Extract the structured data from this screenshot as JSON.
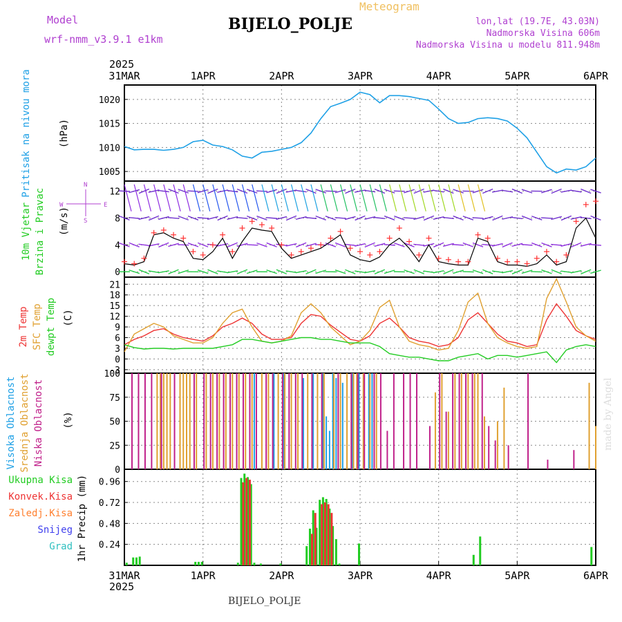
{
  "header": {
    "title": "BIJELO_POLJE",
    "subtitle": "Meteogram",
    "model_label": "Model",
    "model_name": "wrf-nmm_v3.9.1 e1km",
    "location_line1": "lon,lat (19.7E, 43.03N)",
    "location_line2": "Nadmorska Visina 606m",
    "location_line3": "Nadmorska Visina u modelu 811.948m"
  },
  "footer": {
    "caption": "BIJELO_POLJE",
    "credit": "made by Angel"
  },
  "time_axis": {
    "year": "2025",
    "labels": [
      "31MAR",
      "1APR",
      "2APR",
      "3APR",
      "4APR",
      "5APR",
      "6APR"
    ]
  },
  "colors": {
    "pressure": "#1ea0e6",
    "wind_speed": "#000000",
    "gust": "#ff3030",
    "temp2m": "#ee3333",
    "sfc_temp": "#e0a030",
    "dewpt": "#22cc22",
    "cloud_high": "#1ea0e6",
    "cloud_mid": "#e0a030",
    "cloud_low": "#c0208a",
    "precip_total": "#22cc22",
    "precip_conv": "#ee3333",
    "precip_frozen": "#ff8030",
    "snow": "#4040ee",
    "graupel": "#30c0c0"
  },
  "chart_data": [
    {
      "type": "line",
      "name": "pressure",
      "ylabel": "(hPa)",
      "side_label": "Pritisak na nivou mora",
      "ylim": [
        1003,
        1023
      ],
      "yticks": [
        1005,
        1010,
        1015,
        1020
      ],
      "x": [
        0,
        3,
        6,
        9,
        12,
        15,
        18,
        21,
        24,
        27,
        30,
        33,
        36,
        39,
        42,
        45,
        48,
        51,
        54,
        57,
        60,
        63,
        66,
        69,
        72,
        75,
        78,
        81,
        84,
        87,
        90,
        93,
        96,
        99,
        102,
        105,
        108,
        111,
        114,
        117,
        120,
        123,
        126,
        129,
        132,
        135,
        138,
        141,
        144
      ],
      "values": [
        1010.2,
        1009.5,
        1009.6,
        1009.6,
        1009.4,
        1009.6,
        1010,
        1011.2,
        1011.5,
        1010.5,
        1010.2,
        1009.5,
        1008.2,
        1007.8,
        1009,
        1009.2,
        1009.6,
        1010,
        1011,
        1013,
        1016,
        1018.5,
        1019.2,
        1020,
        1021.5,
        1021,
        1019.3,
        1020.8,
        1020.8,
        1020.6,
        1020.2,
        1019.8,
        1018,
        1016,
        1015,
        1015.2,
        1016,
        1016.2,
        1016,
        1015.5,
        1014,
        1012,
        1009,
        1006,
        1004.7,
        1005.5,
        1005.3,
        1006,
        1007.8
      ]
    },
    {
      "type": "line",
      "name": "wind",
      "ylabel": "(m/s)",
      "side_label": [
        "10m Vjetar",
        "Brzina i Pravac"
      ],
      "direction_legend": [
        "W",
        "S",
        "N",
        "E"
      ],
      "ylim": [
        -0.8,
        13.5
      ],
      "yticks": [
        0,
        4,
        8,
        12
      ],
      "x": [
        0,
        3,
        6,
        9,
        12,
        15,
        18,
        21,
        24,
        27,
        30,
        33,
        36,
        39,
        42,
        45,
        48,
        51,
        54,
        57,
        60,
        63,
        66,
        69,
        72,
        75,
        78,
        81,
        84,
        87,
        90,
        93,
        96,
        99,
        102,
        105,
        108,
        111,
        114,
        117,
        120,
        123,
        126,
        129,
        132,
        135,
        138,
        141,
        144
      ],
      "speed": [
        1.2,
        1.0,
        1.5,
        5.5,
        5.8,
        5.0,
        4.5,
        2.0,
        1.8,
        3.0,
        5.0,
        2.0,
        4.5,
        6.5,
        6.2,
        6.0,
        3.5,
        2.0,
        2.5,
        3.0,
        3.5,
        4.5,
        5.5,
        2.5,
        1.8,
        1.5,
        2.2,
        4.0,
        5.0,
        3.5,
        1.5,
        4.0,
        1.5,
        1.2,
        1.0,
        1.0,
        5.0,
        4.5,
        1.5,
        1.0,
        1.0,
        0.8,
        1.2,
        2.5,
        1.0,
        1.5,
        6.5,
        8.0,
        5.0
      ],
      "gust": [
        1.5,
        1.2,
        2.0,
        5.8,
        6.2,
        5.5,
        5.0,
        3.0,
        2.5,
        4.0,
        5.5,
        3.0,
        6.5,
        7.5,
        7.0,
        6.5,
        4.0,
        2.5,
        3.0,
        3.5,
        4.0,
        5.0,
        6.0,
        3.5,
        3.0,
        2.5,
        3.0,
        5.0,
        6.5,
        4.5,
        2.5,
        5.0,
        2.0,
        1.8,
        1.5,
        1.5,
        5.5,
        5.0,
        2.0,
        1.5,
        1.5,
        1.2,
        2.0,
        3.0,
        1.5,
        2.5,
        7.5,
        10.0,
        10.5
      ]
    },
    {
      "type": "line",
      "name": "temperature",
      "ylabel": "(C)",
      "side_label": [
        "2m Temp",
        "SFC Temp",
        "dewpt Temp"
      ],
      "ylim": [
        -4,
        23
      ],
      "yticks": [
        -3,
        0,
        3,
        6,
        9,
        12,
        15,
        18,
        21
      ],
      "x": [
        0,
        3,
        6,
        9,
        12,
        15,
        18,
        21,
        24,
        27,
        30,
        33,
        36,
        39,
        42,
        45,
        48,
        51,
        54,
        57,
        60,
        63,
        66,
        69,
        72,
        75,
        78,
        81,
        84,
        87,
        90,
        93,
        96,
        99,
        102,
        105,
        108,
        111,
        114,
        117,
        120,
        123,
        126,
        129,
        132,
        135,
        138,
        141,
        144
      ],
      "series": [
        {
          "name": "2m Temp",
          "values": [
            4,
            5.5,
            6.5,
            8,
            8.5,
            7,
            6,
            5.5,
            5,
            6.5,
            9,
            10,
            11.5,
            10,
            7,
            5.5,
            5.5,
            6,
            10,
            12.5,
            12,
            9.5,
            7.5,
            5.5,
            5,
            6.5,
            10,
            11.5,
            9,
            6,
            5,
            4.5,
            3.5,
            4,
            6,
            11,
            13,
            10,
            7,
            5,
            4.5,
            3.5,
            4,
            11,
            15.5,
            12,
            8,
            6.5,
            5.5
          ]
        },
        {
          "name": "SFC Temp",
          "values": [
            2,
            7,
            8.5,
            10,
            9,
            6.5,
            5.5,
            4.5,
            4.5,
            6,
            10,
            13,
            14,
            9,
            5,
            4.5,
            5,
            6.5,
            13,
            15.5,
            13,
            9,
            6.5,
            4,
            5,
            8,
            14.5,
            16.5,
            9,
            5,
            4,
            3.5,
            2.5,
            3,
            8,
            16,
            18.5,
            10,
            6,
            4.5,
            3.5,
            3,
            3.5,
            17,
            22.5,
            16,
            9,
            6.5,
            5
          ]
        },
        {
          "name": "dewpt Temp",
          "values": [
            4,
            3.2,
            2.8,
            3,
            3,
            2.8,
            3,
            3,
            3,
            3,
            3.5,
            4,
            5.5,
            5.5,
            5,
            4.5,
            5,
            5.5,
            6,
            6,
            5.5,
            5.5,
            5,
            4.5,
            4.5,
            4.5,
            3.5,
            1.5,
            1,
            0.5,
            0.5,
            0,
            -0.5,
            -0.5,
            0.5,
            1,
            1.5,
            0,
            1,
            1,
            0.5,
            1,
            1.5,
            2,
            -1,
            2.5,
            3.5,
            4,
            3.5
          ]
        }
      ]
    },
    {
      "type": "bar",
      "name": "clouds",
      "ylabel": "(%)",
      "side_label": [
        "Visoka Oblacnost",
        "Srednja Oblacnost",
        "Niska Oblacnost"
      ],
      "ylim": [
        0,
        100
      ],
      "yticks": [
        0,
        25,
        50,
        75,
        100
      ],
      "series": [
        {
          "name": "Visoka Oblacnost",
          "x": [
            40,
            46,
            49,
            55,
            58,
            61,
            62,
            63,
            64,
            65,
            67,
            70,
            72,
            75,
            76
          ],
          "values": [
            100,
            100,
            100,
            95,
            100,
            100,
            55,
            40,
            100,
            95,
            90,
            100,
            100,
            100,
            100
          ]
        },
        {
          "name": "Srednja Oblacnost",
          "x": [
            10,
            11,
            12,
            13,
            14,
            17,
            18,
            19,
            20,
            22,
            25,
            27,
            29,
            31,
            33,
            35,
            37,
            39,
            42,
            44,
            47,
            49,
            51,
            53,
            56,
            59,
            61,
            64,
            66,
            68,
            70,
            71,
            73,
            75,
            77,
            95,
            97,
            99,
            101,
            103,
            105,
            107,
            108,
            110,
            114,
            116,
            142,
            144
          ],
          "values": [
            100,
            100,
            100,
            100,
            100,
            100,
            100,
            100,
            100,
            100,
            100,
            100,
            100,
            100,
            100,
            100,
            100,
            100,
            100,
            100,
            100,
            100,
            100,
            100,
            100,
            100,
            100,
            100,
            100,
            100,
            100,
            100,
            100,
            100,
            100,
            80,
            100,
            60,
            100,
            100,
            100,
            100,
            100,
            55,
            50,
            85,
            90,
            45
          ]
        },
        {
          "name": "Niska Oblacnost",
          "x": [
            2,
            4,
            6,
            8,
            11,
            15,
            21,
            24,
            26,
            28,
            30,
            32,
            34,
            36,
            38,
            40,
            43,
            45,
            48,
            50,
            52,
            54,
            57,
            60,
            65,
            69,
            71,
            73,
            76,
            78,
            80,
            82,
            85,
            87,
            89,
            93,
            96,
            98,
            100,
            102,
            104,
            106,
            109,
            111,
            113,
            117,
            123,
            129,
            137
          ],
          "values": [
            100,
            100,
            100,
            100,
            100,
            100,
            100,
            100,
            100,
            100,
            100,
            100,
            100,
            100,
            100,
            100,
            100,
            100,
            100,
            100,
            100,
            100,
            100,
            100,
            100,
            100,
            100,
            100,
            100,
            100,
            40,
            100,
            100,
            100,
            100,
            45,
            100,
            60,
            100,
            100,
            100,
            100,
            100,
            45,
            30,
            25,
            100,
            10,
            20
          ]
        }
      ]
    },
    {
      "type": "bar",
      "name": "precipitation",
      "ylabel": "1hr Precip (mm)",
      "side_label": [
        "Ukupna Kisa",
        "Konvek.Kisa",
        "Zaledj.Kisa",
        "Snijeg",
        "Grad"
      ],
      "ylim": [
        0,
        1.1
      ],
      "yticks": [
        0.24,
        0.48,
        0.72,
        0.96
      ],
      "series": [
        {
          "name": "Ukupna Kisa",
          "x": [
            1,
            3,
            4,
            5,
            22,
            23,
            24,
            35,
            36,
            37,
            38,
            39,
            40,
            42,
            48,
            56,
            57,
            58,
            59,
            60,
            61,
            62,
            63,
            64,
            65,
            66,
            72,
            107,
            108,
            109,
            143
          ],
          "values": [
            0.03,
            0.09,
            0.09,
            0.1,
            0.04,
            0.04,
            0.04,
            0.03,
            1.0,
            1.05,
            1.01,
            0.93,
            0.03,
            0.02,
            0.02,
            0.22,
            0.42,
            0.63,
            0.43,
            0.75,
            0.78,
            0.76,
            0.65,
            0.45,
            0.3,
            0.02,
            0.25,
            0.12,
            0.01,
            0.33,
            0.21
          ]
        },
        {
          "name": "Konvek.Kisa",
          "x": [
            36,
            37,
            38,
            57,
            58,
            60,
            61,
            62,
            63
          ],
          "values": [
            0.95,
            1.0,
            0.98,
            0.36,
            0.6,
            0.7,
            0.72,
            0.7,
            0.6
          ]
        }
      ]
    }
  ]
}
